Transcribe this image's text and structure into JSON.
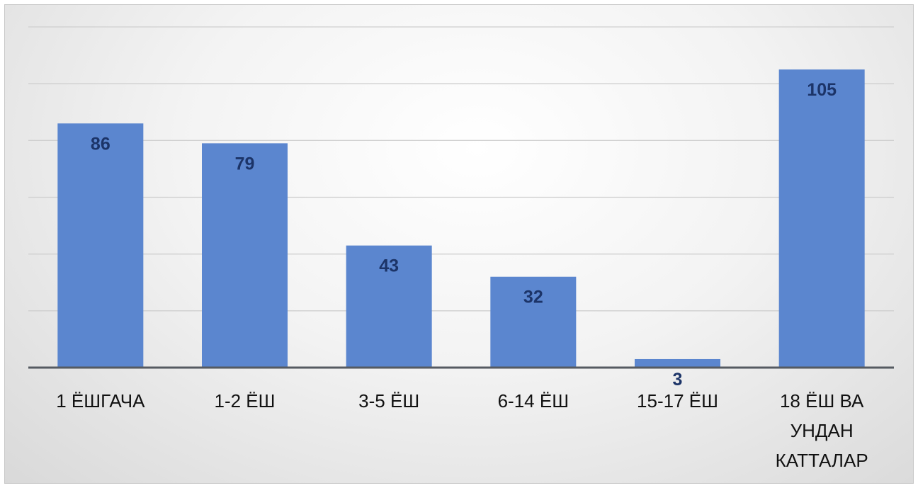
{
  "chart_data": {
    "type": "bar",
    "title": "",
    "xlabel": "",
    "ylabel": "",
    "categories": [
      [
        "1 ЁШГАЧА"
      ],
      [
        "1-2 ЁШ"
      ],
      [
        "3-5 ЁШ"
      ],
      [
        "6-14 ЁШ"
      ],
      [
        "15-17 ЁШ"
      ],
      [
        "18 ЁШ ВА",
        "УНДАН",
        "КАТТАЛАР"
      ]
    ],
    "values": [
      86,
      79,
      43,
      32,
      3,
      105
    ],
    "ylim": [
      0,
      120
    ],
    "gridlines": [
      20,
      40,
      60,
      80,
      100,
      120
    ],
    "grid": true,
    "y_tick_labels_visible": false,
    "legend": "none",
    "colors": {
      "bar": "#5b86cf",
      "data_label": "#1c3468",
      "axis": "#555a61",
      "grid": "#cfcfcf"
    }
  }
}
